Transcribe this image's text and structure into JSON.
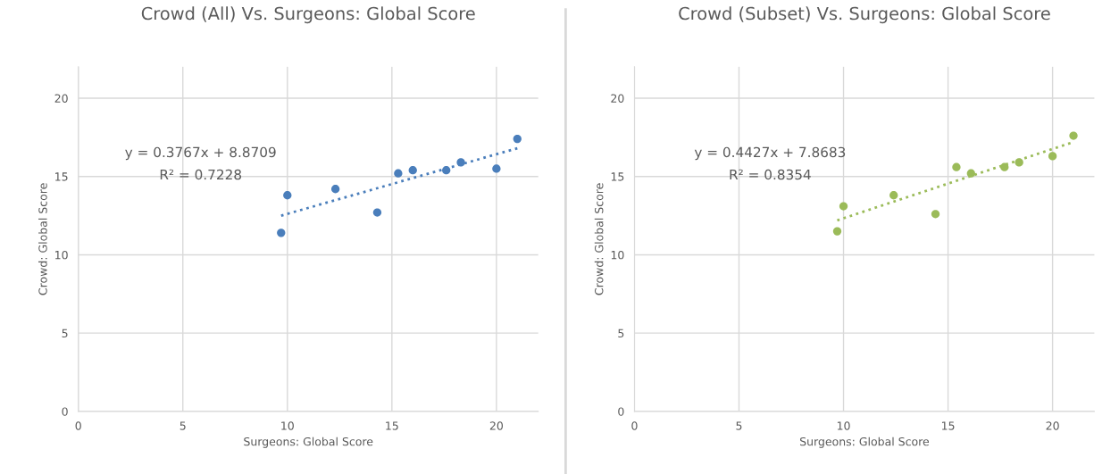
{
  "chart_data": [
    {
      "type": "scatter",
      "title": "Crowd (All) Vs. Surgeons: Global Score",
      "xlabel": "Surgeons: Global Score",
      "ylabel": "Crowd: Global Score",
      "xlim": [
        0,
        22
      ],
      "ylim": [
        0,
        22
      ],
      "xticks": [
        0,
        5,
        10,
        15,
        20
      ],
      "yticks": [
        0,
        5,
        10,
        15,
        20
      ],
      "grid": true,
      "legend": false,
      "series": [
        {
          "marker": "circle",
          "color": "#4a7ebb",
          "x": [
            9.7,
            10.0,
            12.3,
            14.3,
            15.3,
            16.0,
            17.6,
            18.3,
            20.0,
            21.0
          ],
          "values": [
            11.4,
            13.8,
            14.2,
            12.7,
            15.2,
            15.4,
            15.4,
            15.9,
            15.5,
            17.4
          ]
        },
        {
          "type": "line",
          "marker": "none",
          "line_style": "dotted",
          "color": "#4a7ebb",
          "x": [
            9.7,
            21.0
          ],
          "values": [
            12.5,
            16.8
          ]
        }
      ],
      "annotations": [
        "y = 0.3767x + 8.8709",
        "R² = 0.7228"
      ]
    },
    {
      "type": "scatter",
      "title": "Crowd (Subset) Vs. Surgeons: Global Score",
      "xlabel": "Surgeons: Global Score",
      "ylabel": "Crowd: Global Score",
      "xlim": [
        0,
        22
      ],
      "ylim": [
        0,
        22
      ],
      "xticks": [
        0,
        5,
        10,
        15,
        20
      ],
      "yticks": [
        0,
        5,
        10,
        15,
        20
      ],
      "grid": true,
      "legend": false,
      "series": [
        {
          "marker": "circle",
          "color": "#9bbb59",
          "x": [
            9.7,
            10.0,
            12.4,
            14.4,
            15.4,
            16.1,
            17.7,
            18.4,
            20.0,
            21.0
          ],
          "values": [
            11.5,
            13.1,
            13.8,
            12.6,
            15.6,
            15.2,
            15.6,
            15.9,
            16.3,
            17.6
          ]
        },
        {
          "type": "line",
          "marker": "none",
          "line_style": "dotted",
          "color": "#9bbb59",
          "x": [
            9.7,
            21.0
          ],
          "values": [
            12.2,
            17.2
          ]
        }
      ],
      "annotations": [
        "y = 0.4427x + 7.8683",
        "R² = 0.8354"
      ]
    }
  ]
}
